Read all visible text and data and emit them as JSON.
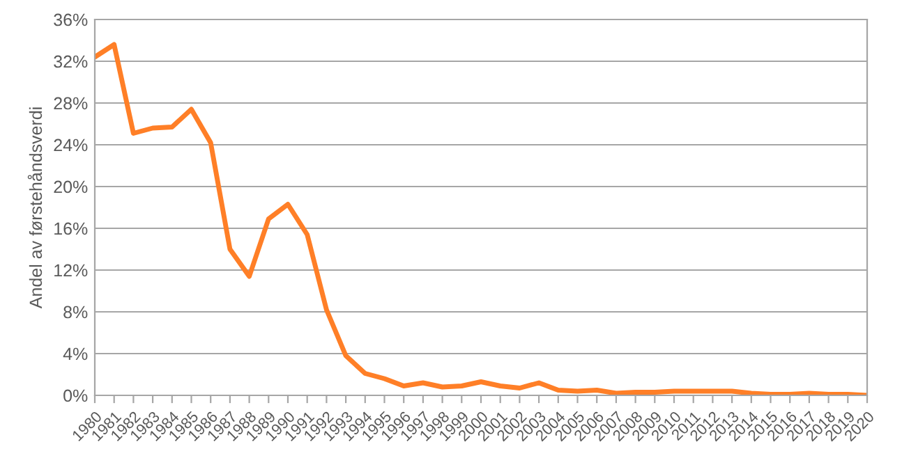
{
  "chart_data": {
    "type": "line",
    "ylabel": "Andel av førstehåndsverdi",
    "categories": [
      "1980",
      "1981",
      "1982",
      "1983",
      "1984",
      "1985",
      "1986",
      "1987",
      "1988",
      "1989",
      "1990",
      "1991",
      "1992",
      "1993",
      "1994",
      "1995",
      "1996",
      "1997",
      "1998",
      "1999",
      "2000",
      "2001",
      "2002",
      "2003",
      "2004",
      "2005",
      "2006",
      "2007",
      "2008",
      "2009",
      "2010",
      "2011",
      "2012",
      "2013",
      "2014",
      "2015",
      "2016",
      "2017",
      "2018",
      "2019",
      "2020"
    ],
    "series": [
      {
        "color": "#ff7f27",
        "values": [
          32.4,
          33.6,
          25.1,
          25.6,
          25.7,
          27.4,
          24.2,
          14.0,
          11.4,
          16.9,
          18.3,
          15.4,
          8.2,
          3.8,
          2.1,
          1.6,
          0.9,
          1.2,
          0.8,
          0.9,
          1.3,
          0.9,
          0.7,
          1.2,
          0.5,
          0.4,
          0.5,
          0.2,
          0.3,
          0.3,
          0.4,
          0.4,
          0.4,
          0.4,
          0.2,
          0.1,
          0.1,
          0.2,
          0.1,
          0.1,
          0.0
        ]
      }
    ],
    "ylim": [
      0,
      36
    ],
    "yticks": [
      {
        "value": 0,
        "label": "0%"
      },
      {
        "value": 4,
        "label": "4%"
      },
      {
        "value": 8,
        "label": "8%"
      },
      {
        "value": 12,
        "label": "12%"
      },
      {
        "value": 16,
        "label": "16%"
      },
      {
        "value": 20,
        "label": "20%"
      },
      {
        "value": 24,
        "label": "24%"
      },
      {
        "value": 28,
        "label": "28%"
      },
      {
        "value": 32,
        "label": "32%"
      },
      {
        "value": 36,
        "label": "36%"
      }
    ],
    "grid": "y",
    "marker": "none",
    "line_style": "solid",
    "legend": false
  }
}
